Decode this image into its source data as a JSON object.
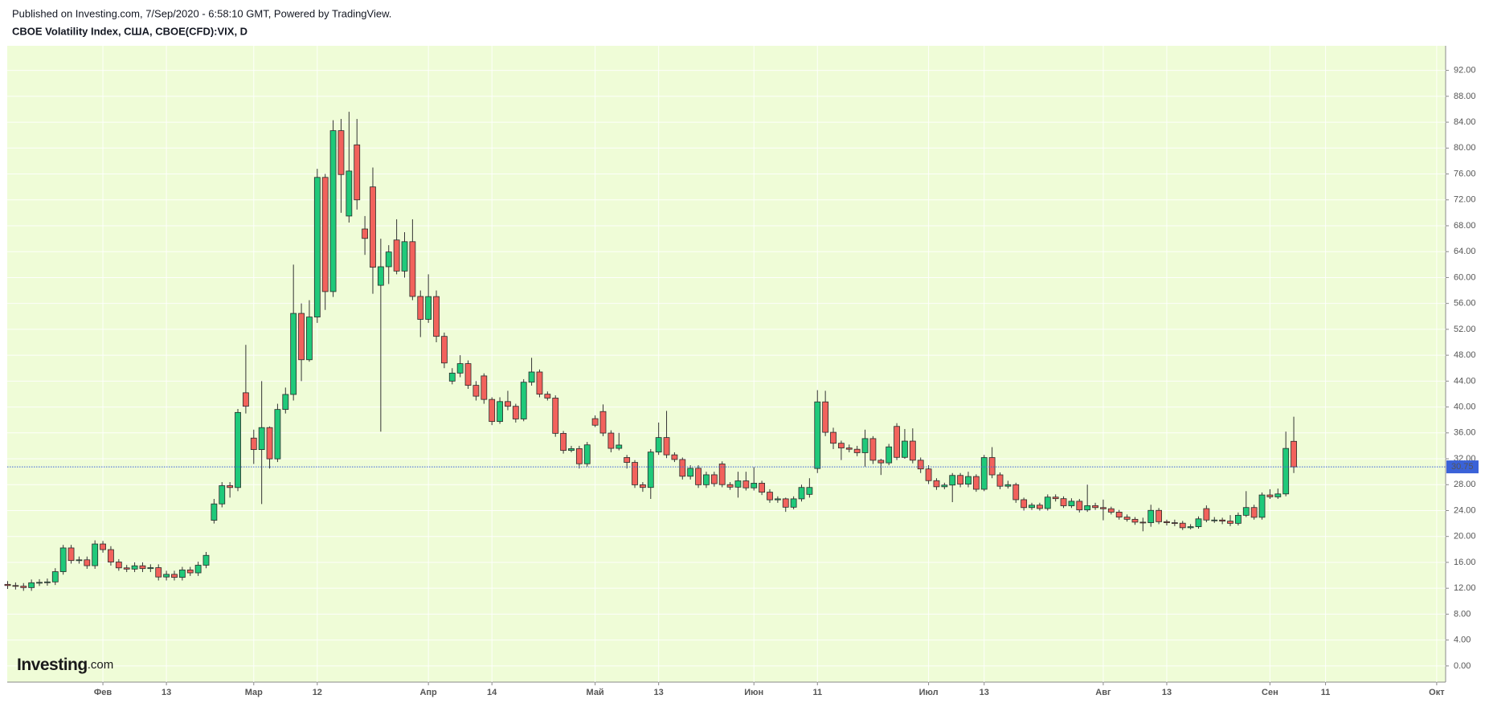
{
  "header": {
    "published": "Published on Investing.com, 7/Sep/2020 - 6:58:10 GMT, Powered by TradingView.",
    "symbol": "CBOE Volatility Index, США, CBOE(CFD):VIX, D"
  },
  "logo": {
    "name": "Investing",
    "suffix": ".com"
  },
  "chart_data": {
    "type": "candlestick",
    "up_color": "#1fc97a",
    "down_color": "#f2625c",
    "price_line_color": "#3a62d8",
    "ylim": [
      -2.5,
      95.8
    ],
    "yticks": [
      {
        "value": 0,
        "label": "0.00"
      },
      {
        "value": 4,
        "label": "4.00"
      },
      {
        "value": 8,
        "label": "8.00"
      },
      {
        "value": 12,
        "label": "12.00"
      },
      {
        "value": 16,
        "label": "16.00"
      },
      {
        "value": 20,
        "label": "20.00"
      },
      {
        "value": 24,
        "label": "24.00"
      },
      {
        "value": 28,
        "label": "28.00"
      },
      {
        "value": 32,
        "label": "32.00"
      },
      {
        "value": 36,
        "label": "36.00"
      },
      {
        "value": 40,
        "label": "40.00"
      },
      {
        "value": 44,
        "label": "44.00"
      },
      {
        "value": 48,
        "label": "48.00"
      },
      {
        "value": 52,
        "label": "52.00"
      },
      {
        "value": 56,
        "label": "56.00"
      },
      {
        "value": 60,
        "label": "60.00"
      },
      {
        "value": 64,
        "label": "64.00"
      },
      {
        "value": 68,
        "label": "68.00"
      },
      {
        "value": 72,
        "label": "72.00"
      },
      {
        "value": 76,
        "label": "76.00"
      },
      {
        "value": 80,
        "label": "80.00"
      },
      {
        "value": 84,
        "label": "84.00"
      },
      {
        "value": 88,
        "label": "88.00"
      },
      {
        "value": 92,
        "label": "92.00"
      }
    ],
    "last_price": 30.75,
    "categories": [
      null,
      null,
      null,
      null,
      null,
      null,
      null,
      null,
      null,
      null,
      null,
      null,
      "Фев",
      null,
      null,
      null,
      null,
      null,
      null,
      null,
      "13",
      null,
      null,
      null,
      null,
      null,
      null,
      null,
      null,
      null,
      null,
      "Мар",
      null,
      null,
      null,
      null,
      null,
      null,
      null,
      "12",
      null,
      null,
      null,
      null,
      null,
      null,
      null,
      null,
      null,
      null,
      null,
      null,
      null,
      "Апр",
      null,
      null,
      null,
      null,
      null,
      null,
      null,
      "14",
      null,
      null,
      null,
      null,
      null,
      null,
      null,
      null,
      null,
      null,
      null,
      null,
      "Май",
      null,
      null,
      null,
      null,
      null,
      null,
      null,
      "13",
      null,
      null,
      null,
      null,
      null,
      null,
      null,
      null,
      null,
      null,
      null,
      "Июн",
      null,
      null,
      null,
      null,
      null,
      null,
      null,
      "11",
      null,
      null,
      null,
      null,
      null,
      null,
      null,
      null,
      null,
      null,
      null,
      null,
      null,
      "Июл",
      null,
      null,
      null,
      null,
      null,
      null,
      "13",
      null,
      null,
      null,
      null,
      null,
      null,
      null,
      null,
      null,
      null,
      null,
      null,
      null,
      null,
      "Авг",
      null,
      null,
      null,
      null,
      null,
      null,
      null,
      "13",
      null,
      null,
      null,
      null,
      null,
      null,
      null,
      null,
      null,
      null,
      null,
      null,
      "Сен",
      null,
      null,
      null,
      null,
      null,
      null,
      "11",
      null,
      null,
      null,
      null,
      null,
      null,
      null,
      null,
      null,
      null,
      null,
      null,
      null,
      "Окт"
    ],
    "open": [
      12.6,
      12.42,
      12.32,
      12.1,
      12.85,
      12.91,
      12.98,
      14.56,
      18.23,
      16.28,
      16.39,
      15.49,
      18.84,
      17.97,
      16.05,
      15.15,
      14.96,
      15.47,
      15.04,
      15.18,
      13.74,
      14.15,
      13.68,
      14.83,
      14.38,
      15.56,
      22.5,
      25.03,
      27.85,
      27.56,
      42.2,
      35.2,
      33.42,
      36.82,
      31.99,
      39.62,
      41.94,
      54.46,
      47.3,
      53.9,
      75.47,
      57.83,
      82.69,
      69.5,
      80.5,
      67.5,
      74.0,
      58.8,
      61.67,
      65.8,
      61.0,
      65.54,
      57.08,
      53.54,
      57.06,
      50.91,
      44.0,
      45.24,
      46.7,
      43.35,
      44.8,
      41.17,
      37.76,
      40.84,
      40.11,
      38.15,
      43.83,
      45.41,
      41.98,
      41.38,
      35.93,
      33.29,
      33.57,
      31.23,
      38.2,
      39.3,
      35.97,
      33.61,
      32.2,
      31.44,
      27.98,
      27.57,
      33.04,
      35.28,
      32.61,
      31.89,
      29.3,
      30.53,
      27.99,
      29.53,
      31.2,
      28.01,
      27.62,
      28.59,
      27.51,
      28.23,
      26.84,
      25.66,
      25.81,
      24.52,
      25.81,
      26.5,
      30.5,
      40.79,
      36.09,
      34.4,
      33.67,
      33.47,
      32.94,
      35.12,
      31.77,
      31.37,
      37.0,
      32.22,
      34.73,
      31.78,
      30.43,
      28.62,
      27.68,
      27.94,
      29.43,
      28.08,
      29.26,
      27.29,
      32.19,
      29.52,
      27.76,
      28.0,
      25.68,
      24.46,
      24.84,
      24.32,
      26.08,
      25.84,
      24.74,
      25.44,
      24.1,
      24.76,
      24.46,
      24.28,
      23.76,
      22.99,
      22.65,
      22.21,
      22.13,
      24.03,
      22.28,
      22.13,
      22.05,
      21.35,
      21.51,
      24.3,
      22.54,
      22.54,
      22.37,
      22.03,
      23.27,
      24.47,
      22.96,
      26.41,
      26.12,
      26.57,
      34.7,
      null,
      null,
      null,
      null,
      null,
      null,
      null,
      null,
      null,
      null,
      null,
      null,
      null,
      null,
      null,
      null,
      null,
      null
    ],
    "high": [
      13.1,
      12.9,
      12.8,
      13.35,
      13.4,
      13.5,
      15.1,
      18.7,
      18.7,
      16.9,
      16.9,
      19.4,
      19.3,
      18.5,
      16.5,
      15.6,
      16.0,
      16.0,
      15.7,
      15.7,
      14.7,
      14.7,
      15.3,
      15.3,
      16.1,
      17.6,
      25.8,
      28.4,
      28.4,
      39.7,
      49.6,
      36.5,
      44,
      37,
      40.5,
      43,
      62,
      56,
      56.5,
      76.8,
      76,
      84.3,
      84.5,
      85.6,
      84.5,
      69.5,
      77,
      66,
      65,
      69,
      67,
      69,
      58,
      60.5,
      58,
      51.5,
      46,
      48,
      47.2,
      44,
      45.2,
      41.5,
      41.5,
      42.5,
      40.5,
      44.3,
      47.6,
      45.8,
      42.4,
      41.8,
      36.3,
      34,
      34,
      34.6,
      38.7,
      40.4,
      36.4,
      36,
      32.6,
      31.8,
      28.4,
      33.5,
      37.6,
      39.4,
      33,
      32.2,
      31,
      31,
      30,
      30,
      31.6,
      28.4,
      30,
      30,
      30.7,
      28.6,
      27.3,
      26.2,
      26,
      26.2,
      28,
      29,
      42.6,
      42.5,
      36.8,
      34.8,
      34.2,
      34,
      36.5,
      35.5,
      32,
      34.3,
      37.5,
      36.6,
      36.7,
      32.2,
      31,
      29,
      28.3,
      29.8,
      29.8,
      30,
      29.6,
      32.6,
      33.8,
      29.9,
      28.6,
      28.3,
      26,
      25.2,
      25.2,
      26.5,
      26.5,
      26.2,
      25.9,
      25.8,
      28,
      25.2,
      25.7,
      24.6,
      24.1,
      23.4,
      23,
      22.9,
      24.9,
      24.4,
      22.6,
      22.6,
      22.4,
      21.9,
      23.1,
      24.8,
      23,
      22.9,
      23.3,
      23.7,
      27,
      24.9,
      26.8,
      27.3,
      27.4,
      36.2,
      38.5,
      null,
      null,
      null,
      null,
      null,
      null,
      null,
      null,
      null,
      null,
      null,
      null,
      null,
      null,
      null,
      null,
      null,
      null
    ],
    "low": [
      11.9,
      11.8,
      11.6,
      11.6,
      12.35,
      12.4,
      12.5,
      14.1,
      15.8,
      15.8,
      15.0,
      15.0,
      17.5,
      15.5,
      14.7,
      14.5,
      14.5,
      14.5,
      14.5,
      13.2,
      13.2,
      13.2,
      13.2,
      13.9,
      13.9,
      15.1,
      22.0,
      24.5,
      26.0,
      27.0,
      39.0,
      31.2,
      25,
      30.5,
      31.5,
      39,
      41,
      44,
      47,
      53,
      55,
      57,
      70,
      68.5,
      70.5,
      63.5,
      57.5,
      36.2,
      59,
      60.5,
      60,
      56.5,
      50.8,
      53,
      50,
      46,
      43.5,
      44.6,
      42.8,
      41,
      40.5,
      37.2,
      37.4,
      39.5,
      37.6,
      37.8,
      43.3,
      41.5,
      41,
      35.4,
      32.8,
      33,
      30.5,
      30.8,
      36.9,
      35.5,
      33,
      33.3,
      30.5,
      27.5,
      26.9,
      25.8,
      32.6,
      32.1,
      31.5,
      28.8,
      28.8,
      27.5,
      27.5,
      27.7,
      27.6,
      27.2,
      26,
      27.1,
      27.1,
      26.4,
      25.2,
      25.2,
      23.8,
      24.2,
      25.4,
      26,
      29.8,
      35.5,
      33.5,
      31.8,
      33,
      32.4,
      30.8,
      31.2,
      29.5,
      31,
      31.8,
      32,
      31.3,
      29.8,
      28.1,
      27.2,
      27.3,
      25.3,
      27.6,
      27.6,
      26.9,
      27,
      29,
      27.3,
      27.4,
      25.2,
      24,
      24.1,
      24,
      24,
      25.4,
      24.4,
      24.4,
      23.7,
      23.8,
      24.1,
      22.5,
      23.4,
      22.6,
      22.3,
      21.8,
      20.8,
      21.5,
      21.9,
      21.7,
      21.6,
      21,
      21.1,
      21.2,
      22.2,
      22.1,
      21.9,
      21.6,
      21.7,
      23,
      22.6,
      22.6,
      25.8,
      25.8,
      26.2,
      29.8,
      null,
      null,
      null,
      null,
      null,
      null,
      null,
      null,
      null,
      null,
      null,
      null,
      null,
      null,
      null,
      null,
      null,
      null
    ],
    "close": [
      12.42,
      12.32,
      12.1,
      12.85,
      12.91,
      12.98,
      14.56,
      18.23,
      16.28,
      16.39,
      15.49,
      18.84,
      17.97,
      16.05,
      15.15,
      14.96,
      15.47,
      15.04,
      15.18,
      13.74,
      14.15,
      13.68,
      14.83,
      14.38,
      15.56,
      17.08,
      25.03,
      27.85,
      27.56,
      39.16,
      40.11,
      33.42,
      36.82,
      31.99,
      39.62,
      41.94,
      54.46,
      47.3,
      53.9,
      75.47,
      57.83,
      82.69,
      75.91,
      76.45,
      72.0,
      66.04,
      61.59,
      61.67,
      63.95,
      61.0,
      65.54,
      57.08,
      53.54,
      57.06,
      50.91,
      46.8,
      45.24,
      46.7,
      43.35,
      41.67,
      41.17,
      37.76,
      40.84,
      40.11,
      38.15,
      43.83,
      45.41,
      41.98,
      41.38,
      35.93,
      33.29,
      33.57,
      31.23,
      34.15,
      37.19,
      35.97,
      33.61,
      34.12,
      31.44,
      27.98,
      27.57,
      33.04,
      35.28,
      32.61,
      31.89,
      29.3,
      30.53,
      27.99,
      29.53,
      28.16,
      28.01,
      27.62,
      28.59,
      27.51,
      28.23,
      26.84,
      25.66,
      25.81,
      24.52,
      25.81,
      27.57,
      27.57,
      40.79,
      36.09,
      34.4,
      33.67,
      33.47,
      32.94,
      35.12,
      31.77,
      31.37,
      33.84,
      32.22,
      34.73,
      31.78,
      30.43,
      28.62,
      27.68,
      27.94,
      29.43,
      28.08,
      29.26,
      27.29,
      32.19,
      29.52,
      27.76,
      28.0,
      25.68,
      24.46,
      24.84,
      24.32,
      26.08,
      25.84,
      24.74,
      25.44,
      24.1,
      24.76,
      24.46,
      24.28,
      23.76,
      22.99,
      22.65,
      22.21,
      22.13,
      24.03,
      22.28,
      22.13,
      22.05,
      21.35,
      21.51,
      22.72,
      22.54,
      22.54,
      22.37,
      22.03,
      23.27,
      24.47,
      22.96,
      26.41,
      26.12,
      26.57,
      33.6,
      30.75,
      null,
      null,
      null,
      null,
      null,
      null,
      null,
      null,
      null,
      null,
      null,
      null,
      null,
      null,
      null,
      null,
      null,
      null
    ]
  }
}
